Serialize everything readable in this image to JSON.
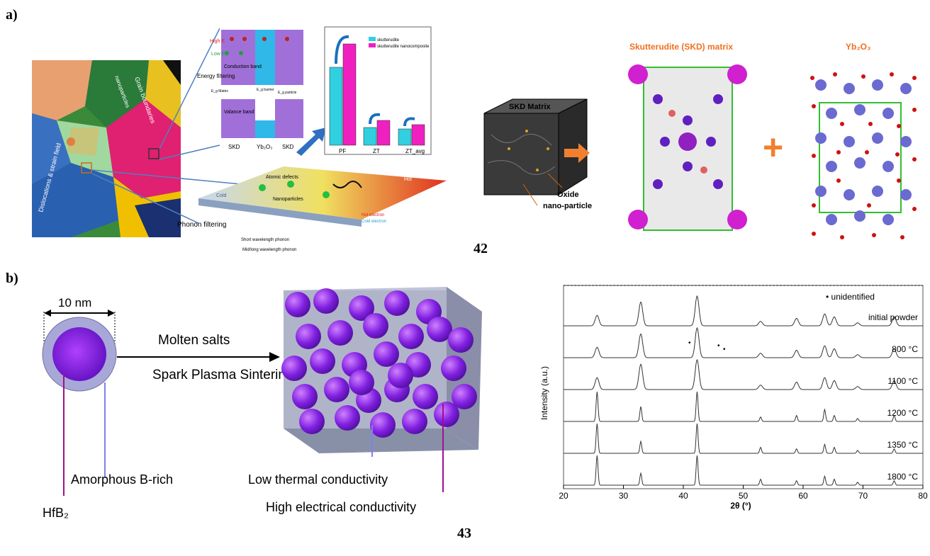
{
  "panel_a": {
    "label": "a)",
    "grain_map": {
      "grain_boundaries": "Grain boundaries",
      "nanoparticles": "nanoparticles",
      "dislocations": "Dislocations & strain field"
    },
    "band_diagram": {
      "high_e": "High E",
      "low_e": "Low E",
      "conduction_band": "Conduction band",
      "valance_band": "Valance band",
      "energy_filtering": "Energy filtering",
      "eg_matrix": "E_g Matrix",
      "eg_barrier": "E_g barrier",
      "eg_particle": "E_g particle",
      "cols": [
        "SKD",
        "Yb₂O₃",
        "SKD"
      ]
    },
    "bar_chart": {
      "legend": [
        "skutterudite",
        "skutterudite nanocomposite"
      ],
      "categories": [
        "PF",
        "ZT",
        "ZT_avg"
      ]
    },
    "phonon": {
      "phonon_filtering": "Phonon filtering",
      "hot": "Hot",
      "cold": "Cold",
      "atomic_defects": "Atomic defects",
      "nanoparticles": "Nanoparticles",
      "hot_electron": "Hot electron",
      "cold_electron": "Cold electron",
      "short_phonon": "Short wavelength phonon",
      "mid_phonon": "Mid/long wavelength phonon"
    },
    "skd_cube": {
      "title": "SKD Matrix",
      "oxide": "Oxide",
      "nano": "nano-particle"
    },
    "crystal1_title": "Skutterudite (SKD) matrix",
    "crystal2_title": "Yb₂O₃",
    "plus": "+",
    "ref": "42"
  },
  "panel_b": {
    "label": "b)",
    "scale": "10 nm",
    "arrow_top": "Molten salts",
    "arrow_bottom": "Spark Plasma Sintering",
    "core": "HfB₂",
    "shell": "Amorphous B-rich",
    "low_k": "Low thermal conductivity",
    "high_sigma": "High electrical conductivity",
    "ref": "43"
  },
  "chart_data": {
    "type": "line",
    "xlabel": "2θ (°)",
    "ylabel": "Intensity (a.u.)",
    "xlim": [
      20,
      80
    ],
    "xticks": [
      20,
      30,
      40,
      50,
      60,
      70,
      80
    ],
    "legend_marker": "• unidentified",
    "peak_positions_2theta": [
      25.6,
      32.9,
      42.3,
      52.9,
      58.9,
      63.6,
      65.2,
      69.1,
      75.2
    ],
    "series": [
      {
        "name": "initial powder",
        "peak_heights": [
          0.35,
          0.8,
          1.0,
          0.15,
          0.25,
          0.4,
          0.3,
          0.1,
          0.3
        ]
      },
      {
        "name": "800 °C",
        "peak_heights": [
          0.35,
          0.8,
          1.0,
          0.15,
          0.25,
          0.4,
          0.3,
          0.1,
          0.3
        ]
      },
      {
        "name": "1100 °C",
        "peak_heights": [
          0.4,
          0.85,
          1.0,
          0.15,
          0.25,
          0.4,
          0.3,
          0.1,
          0.3
        ]
      },
      {
        "name": "1200 °C",
        "peak_heights": [
          1.0,
          0.5,
          1.0,
          0.15,
          0.2,
          0.4,
          0.2,
          0.1,
          0.2
        ]
      },
      {
        "name": "1350 °C",
        "peak_heights": [
          1.0,
          0.4,
          1.0,
          0.2,
          0.15,
          0.3,
          0.2,
          0.1,
          0.15
        ]
      },
      {
        "name": "1800 °C",
        "peak_heights": [
          1.0,
          0.4,
          1.0,
          0.2,
          0.15,
          0.3,
          0.2,
          0.1,
          0.15
        ]
      }
    ]
  }
}
